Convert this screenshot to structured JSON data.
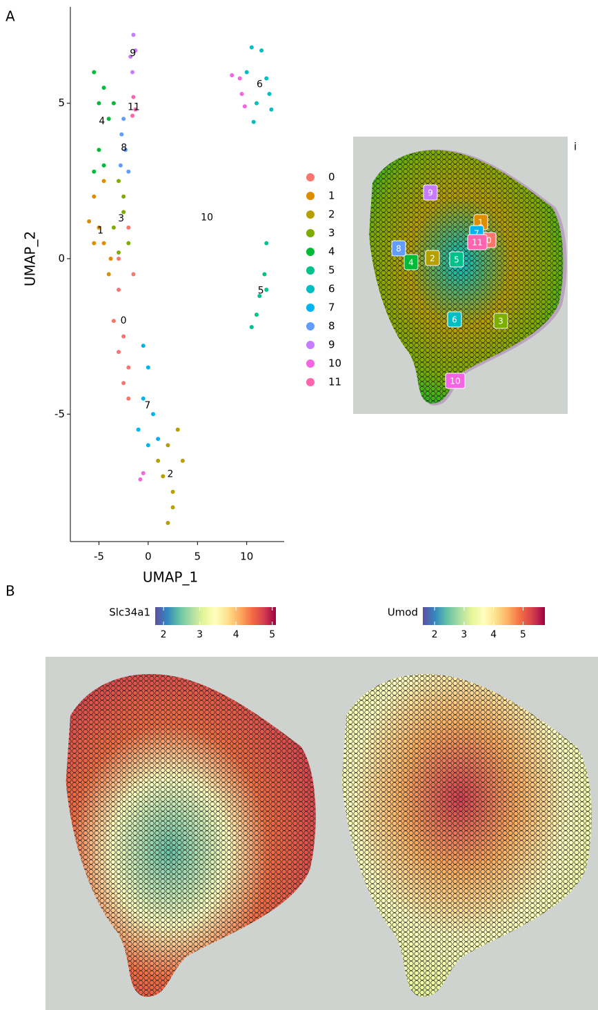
{
  "panels": [
    "A",
    "B"
  ],
  "chart_data": [
    {
      "type": "scatter",
      "xlabel": "UMAP_1",
      "ylabel": "UMAP_2",
      "xlim": [
        -7.9,
        13.8
      ],
      "ylim": [
        -9.1,
        8.1
      ],
      "xticks": [
        -5,
        0,
        5,
        10
      ],
      "yticks": [
        -5,
        0,
        5
      ],
      "series": [
        {
          "name": "0",
          "color": "#F8766D",
          "x": [
            -2,
            -3,
            -3.5,
            -3,
            -2.5,
            -2,
            -2.5,
            -1.5,
            -3,
            -2
          ],
          "y": [
            1,
            -1,
            -2,
            -3,
            -4,
            -4.5,
            -2.5,
            -0.5,
            0,
            -3.5
          ]
        },
        {
          "name": "1",
          "color": "#DE8C00",
          "x": [
            -6,
            -5.5,
            -5,
            -4.5,
            -4,
            -4.5,
            -5.5,
            -3.8
          ],
          "y": [
            1.2,
            2,
            1,
            0.5,
            -0.5,
            2.5,
            0.5,
            0
          ]
        },
        {
          "name": "2",
          "color": "#B79F00",
          "x": [
            2,
            3,
            3.5,
            2.5,
            2,
            1.5,
            1,
            2.5
          ],
          "y": [
            -6,
            -5.5,
            -6.5,
            -7.5,
            -8.5,
            -7,
            -6.5,
            -8
          ]
        },
        {
          "name": "3",
          "color": "#7CAE00",
          "x": [
            -3,
            -2.5,
            -3.5,
            -2,
            -2.5,
            -3
          ],
          "y": [
            2.5,
            1.5,
            1,
            0.5,
            2,
            0.2
          ]
        },
        {
          "name": "4",
          "color": "#00BA38",
          "x": [
            -5.5,
            -4.5,
            -4,
            -5,
            -5.5,
            -3.5,
            -4.5,
            -5
          ],
          "y": [
            6,
            5.5,
            4.5,
            3.5,
            2.8,
            5,
            3,
            5
          ]
        },
        {
          "name": "5",
          "color": "#00C08B",
          "x": [
            12,
            11.8,
            11.3,
            11,
            10.5,
            12
          ],
          "y": [
            0.5,
            -0.5,
            -1.2,
            -1.8,
            -2.2,
            -1
          ]
        },
        {
          "name": "6",
          "color": "#00BFC4",
          "x": [
            10.5,
            11.5,
            12,
            12.5,
            11,
            10.7,
            10,
            12.3
          ],
          "y": [
            6.8,
            6.7,
            5.8,
            4.8,
            5,
            4.4,
            6,
            5.3
          ]
        },
        {
          "name": "7",
          "color": "#00B4F0",
          "x": [
            -0.5,
            0,
            -0.5,
            -1,
            0.5,
            1,
            0
          ],
          "y": [
            -2.8,
            -3.5,
            -4.5,
            -5.5,
            -5,
            -5.8,
            -6
          ]
        },
        {
          "name": "8",
          "color": "#619CFF",
          "x": [
            -2.5,
            -2.3,
            -2.8,
            -2,
            -2.7
          ],
          "y": [
            4.5,
            3.5,
            3,
            2.8,
            4
          ]
        },
        {
          "name": "9",
          "color": "#C77CFF",
          "x": [
            -1.5,
            -1.8,
            -1.3,
            -1.6
          ],
          "y": [
            7.2,
            6.5,
            6.7,
            6
          ]
        },
        {
          "name": "10",
          "color": "#F564E3",
          "x": [
            8.5,
            9.3,
            9.5,
            9.8,
            -0.5,
            -0.8
          ],
          "y": [
            5.9,
            5.8,
            5.3,
            4.9,
            -6.9,
            -7.1
          ]
        },
        {
          "name": "11",
          "color": "#FF64B0",
          "x": [
            -1.5,
            -1.3,
            -1.6
          ],
          "y": [
            5.2,
            4.8,
            4.6
          ]
        }
      ]
    },
    {
      "type": "spatial",
      "annotation": "i"
    },
    {
      "type": "colorbar",
      "title": "Slc34a1",
      "xlim": [
        1.77,
        5.1
      ],
      "xticks": [
        2,
        3,
        4,
        5
      ],
      "colors": [
        "#5E4FA2",
        "#3288BD",
        "#66C2A5",
        "#ABDDA4",
        "#E6F598",
        "#FFFFBF",
        "#FEE08B",
        "#FDAE61",
        "#F46D43",
        "#D53E4F",
        "#9E0142"
      ]
    },
    {
      "type": "colorbar",
      "title": "Umod",
      "xlim": [
        1.6,
        5.74
      ],
      "xticks": [
        2,
        3,
        4,
        5
      ],
      "colors": [
        "#5E4FA2",
        "#3288BD",
        "#66C2A5",
        "#ABDDA4",
        "#E6F598",
        "#FFFFBF",
        "#FEE08B",
        "#FDAE61",
        "#F46D43",
        "#D53E4F",
        "#9E0142"
      ]
    }
  ]
}
